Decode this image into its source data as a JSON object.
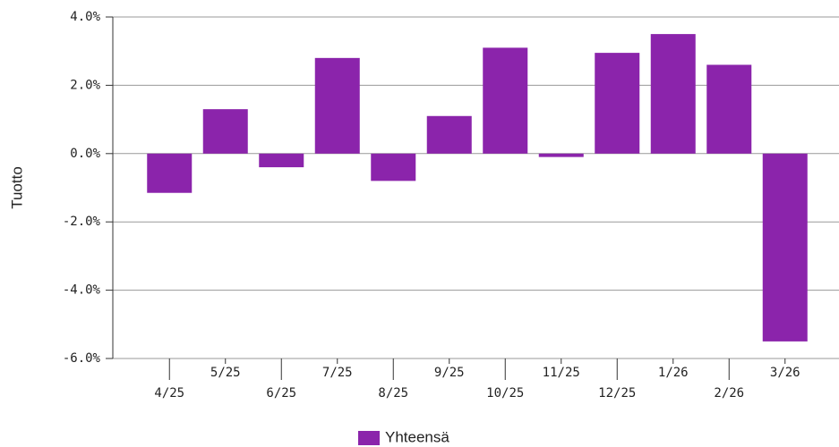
{
  "chart_data": {
    "type": "bar",
    "y_label": "Tuotto",
    "categories": [
      "4/25",
      "5/25",
      "6/25",
      "7/25",
      "8/25",
      "9/25",
      "10/25",
      "11/25",
      "12/25",
      "1/26",
      "2/26",
      "3/26"
    ],
    "series": [
      {
        "name": "Yhteensä",
        "color": "#8b24ab",
        "values": [
          -1.15,
          1.3,
          -0.4,
          2.8,
          -0.8,
          1.1,
          3.1,
          -0.1,
          2.95,
          3.5,
          2.6,
          -5.5
        ]
      }
    ],
    "ylim": [
      -6,
      4
    ],
    "yticks": [
      {
        "value": -6,
        "label": "-6.0%"
      },
      {
        "value": -4,
        "label": "-4.0%"
      },
      {
        "value": -2,
        "label": "-2.0%"
      },
      {
        "value": 0,
        "label": "0.0%"
      },
      {
        "value": 2,
        "label": "2.0%"
      },
      {
        "value": 4,
        "label": "4.0%"
      }
    ],
    "grid": true,
    "legend": "bottom"
  }
}
